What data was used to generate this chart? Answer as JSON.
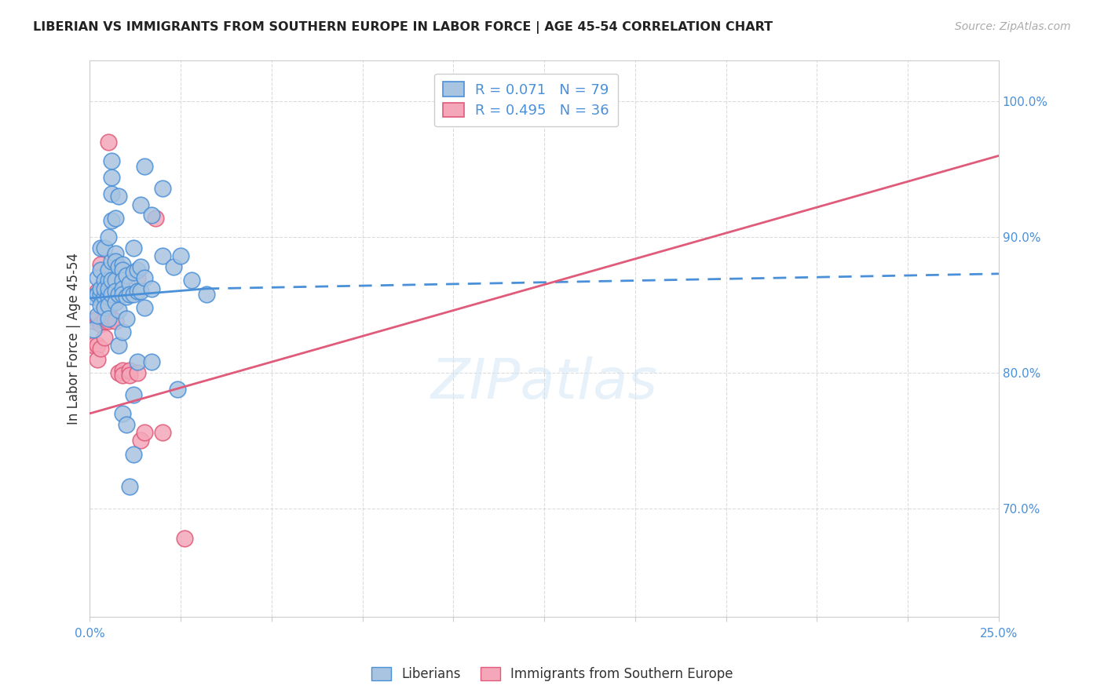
{
  "title": "LIBERIAN VS IMMIGRANTS FROM SOUTHERN EUROPE IN LABOR FORCE | AGE 45-54 CORRELATION CHART",
  "source": "Source: ZipAtlas.com",
  "ylabel": "In Labor Force | Age 45-54",
  "xmin": 0.0,
  "xmax": 0.25,
  "ymin": 0.62,
  "ymax": 1.03,
  "blue_R": 0.071,
  "blue_N": 79,
  "pink_R": 0.495,
  "pink_N": 36,
  "legend_label1": "Liberians",
  "legend_label2": "Immigrants from Southern Europe",
  "blue_color": "#a8c4e0",
  "pink_color": "#f4a7b9",
  "blue_line_color": "#4a90d9",
  "pink_line_color": "#e05a7a",
  "blue_dots": [
    [
      0.001,
      0.856
    ],
    [
      0.001,
      0.832
    ],
    [
      0.002,
      0.87
    ],
    [
      0.002,
      0.842
    ],
    [
      0.002,
      0.858
    ],
    [
      0.003,
      0.892
    ],
    [
      0.003,
      0.858
    ],
    [
      0.003,
      0.85
    ],
    [
      0.003,
      0.876
    ],
    [
      0.003,
      0.862
    ],
    [
      0.004,
      0.892
    ],
    [
      0.004,
      0.856
    ],
    [
      0.004,
      0.848
    ],
    [
      0.004,
      0.868
    ],
    [
      0.004,
      0.862
    ],
    [
      0.005,
      0.9
    ],
    [
      0.005,
      0.868
    ],
    [
      0.005,
      0.876
    ],
    [
      0.005,
      0.858
    ],
    [
      0.005,
      0.856
    ],
    [
      0.005,
      0.85
    ],
    [
      0.005,
      0.84
    ],
    [
      0.005,
      0.862
    ],
    [
      0.006,
      0.956
    ],
    [
      0.006,
      0.944
    ],
    [
      0.006,
      0.932
    ],
    [
      0.006,
      0.912
    ],
    [
      0.006,
      0.882
    ],
    [
      0.006,
      0.868
    ],
    [
      0.006,
      0.858
    ],
    [
      0.007,
      0.914
    ],
    [
      0.007,
      0.888
    ],
    [
      0.007,
      0.882
    ],
    [
      0.007,
      0.868
    ],
    [
      0.007,
      0.86
    ],
    [
      0.007,
      0.852
    ],
    [
      0.008,
      0.93
    ],
    [
      0.008,
      0.878
    ],
    [
      0.008,
      0.858
    ],
    [
      0.008,
      0.846
    ],
    [
      0.008,
      0.82
    ],
    [
      0.009,
      0.88
    ],
    [
      0.009,
      0.876
    ],
    [
      0.009,
      0.868
    ],
    [
      0.009,
      0.862
    ],
    [
      0.009,
      0.858
    ],
    [
      0.009,
      0.83
    ],
    [
      0.009,
      0.77
    ],
    [
      0.01,
      0.872
    ],
    [
      0.01,
      0.856
    ],
    [
      0.01,
      0.84
    ],
    [
      0.01,
      0.762
    ],
    [
      0.011,
      0.866
    ],
    [
      0.011,
      0.858
    ],
    [
      0.011,
      0.716
    ],
    [
      0.012,
      0.892
    ],
    [
      0.012,
      0.874
    ],
    [
      0.012,
      0.858
    ],
    [
      0.012,
      0.784
    ],
    [
      0.012,
      0.74
    ],
    [
      0.013,
      0.876
    ],
    [
      0.013,
      0.86
    ],
    [
      0.013,
      0.808
    ],
    [
      0.014,
      0.924
    ],
    [
      0.014,
      0.878
    ],
    [
      0.014,
      0.86
    ],
    [
      0.015,
      0.952
    ],
    [
      0.015,
      0.87
    ],
    [
      0.015,
      0.848
    ],
    [
      0.017,
      0.916
    ],
    [
      0.017,
      0.862
    ],
    [
      0.017,
      0.808
    ],
    [
      0.02,
      0.936
    ],
    [
      0.02,
      0.886
    ],
    [
      0.023,
      0.878
    ],
    [
      0.024,
      0.788
    ],
    [
      0.025,
      0.886
    ],
    [
      0.028,
      0.868
    ],
    [
      0.032,
      0.858
    ]
  ],
  "pink_dots": [
    [
      0.001,
      0.838
    ],
    [
      0.001,
      0.82
    ],
    [
      0.002,
      0.86
    ],
    [
      0.002,
      0.84
    ],
    [
      0.002,
      0.82
    ],
    [
      0.002,
      0.81
    ],
    [
      0.003,
      0.88
    ],
    [
      0.003,
      0.862
    ],
    [
      0.003,
      0.854
    ],
    [
      0.003,
      0.836
    ],
    [
      0.003,
      0.818
    ],
    [
      0.004,
      0.858
    ],
    [
      0.004,
      0.846
    ],
    [
      0.004,
      0.838
    ],
    [
      0.004,
      0.826
    ],
    [
      0.005,
      0.97
    ],
    [
      0.005,
      0.846
    ],
    [
      0.005,
      0.838
    ],
    [
      0.006,
      0.858
    ],
    [
      0.006,
      0.84
    ],
    [
      0.007,
      0.87
    ],
    [
      0.007,
      0.852
    ],
    [
      0.007,
      0.838
    ],
    [
      0.008,
      0.858
    ],
    [
      0.008,
      0.8
    ],
    [
      0.009,
      0.802
    ],
    [
      0.009,
      0.798
    ],
    [
      0.011,
      0.802
    ],
    [
      0.011,
      0.798
    ],
    [
      0.013,
      0.87
    ],
    [
      0.013,
      0.8
    ],
    [
      0.014,
      0.75
    ],
    [
      0.015,
      0.756
    ],
    [
      0.018,
      0.914
    ],
    [
      0.02,
      0.756
    ],
    [
      0.026,
      0.678
    ]
  ],
  "blue_line": [
    [
      0.0,
      0.855
    ],
    [
      0.032,
      0.862
    ]
  ],
  "blue_line_dashed": [
    [
      0.032,
      0.862
    ],
    [
      0.25,
      0.873
    ]
  ],
  "pink_line": [
    [
      0.0,
      0.77
    ],
    [
      0.25,
      0.96
    ]
  ]
}
